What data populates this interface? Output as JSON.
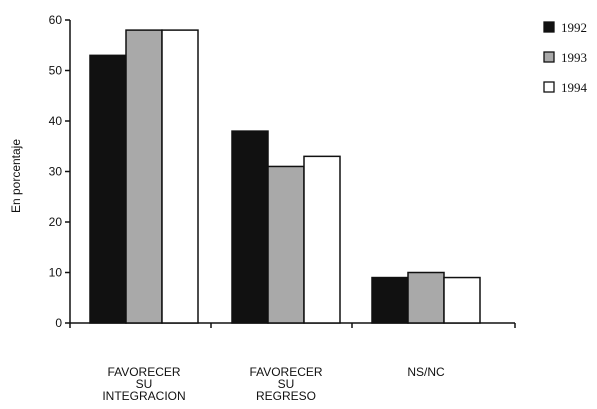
{
  "chart_data": {
    "type": "bar",
    "title": "",
    "xlabel": "",
    "ylabel": "En porcentaje",
    "ylim": [
      0,
      60
    ],
    "yticks": [
      0,
      10,
      20,
      30,
      40,
      50,
      60
    ],
    "categories": [
      [
        "FAVORECER",
        "SU",
        "INTEGRACION"
      ],
      [
        "FAVORECER",
        "SU",
        "REGRESO"
      ],
      [
        "NS/NC"
      ]
    ],
    "series": [
      {
        "name": "1992",
        "color": "#111111",
        "values": [
          53,
          38,
          9
        ]
      },
      {
        "name": "1993",
        "color": "#a9a9a9",
        "values": [
          58,
          31,
          10
        ]
      },
      {
        "name": "1994",
        "color": "#ffffff",
        "values": [
          58,
          33,
          9
        ]
      }
    ],
    "legend_position": "top-right",
    "grid": false
  }
}
